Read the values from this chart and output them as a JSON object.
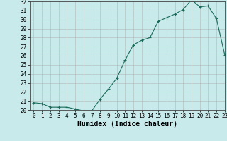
{
  "x": [
    0,
    1,
    2,
    3,
    4,
    5,
    6,
    7,
    8,
    9,
    10,
    11,
    12,
    13,
    14,
    15,
    16,
    17,
    18,
    19,
    20,
    21,
    22,
    23
  ],
  "y": [
    20.8,
    20.7,
    20.3,
    20.3,
    20.3,
    20.1,
    19.9,
    19.9,
    21.2,
    22.3,
    23.5,
    25.5,
    27.2,
    27.7,
    28.0,
    29.8,
    30.2,
    30.6,
    31.1,
    32.2,
    31.4,
    31.5,
    30.1,
    26.1
  ],
  "line_color": "#1a6b5a",
  "marker": "+",
  "marker_size": 3,
  "xlabel": "Humidex (Indice chaleur)",
  "ylim": [
    20,
    32
  ],
  "xlim": [
    -0.5,
    23
  ],
  "yticks": [
    20,
    21,
    22,
    23,
    24,
    25,
    26,
    27,
    28,
    29,
    30,
    31,
    32
  ],
  "xticks": [
    0,
    1,
    2,
    3,
    4,
    5,
    6,
    7,
    8,
    9,
    10,
    11,
    12,
    13,
    14,
    15,
    16,
    17,
    18,
    19,
    20,
    21,
    22,
    23
  ],
  "background_color": "#c8eaea",
  "grid_color": "#b0b8b8",
  "tick_fontsize": 5.5,
  "xlabel_fontsize": 7,
  "linewidth": 0.8,
  "markeredgewidth": 0.8
}
